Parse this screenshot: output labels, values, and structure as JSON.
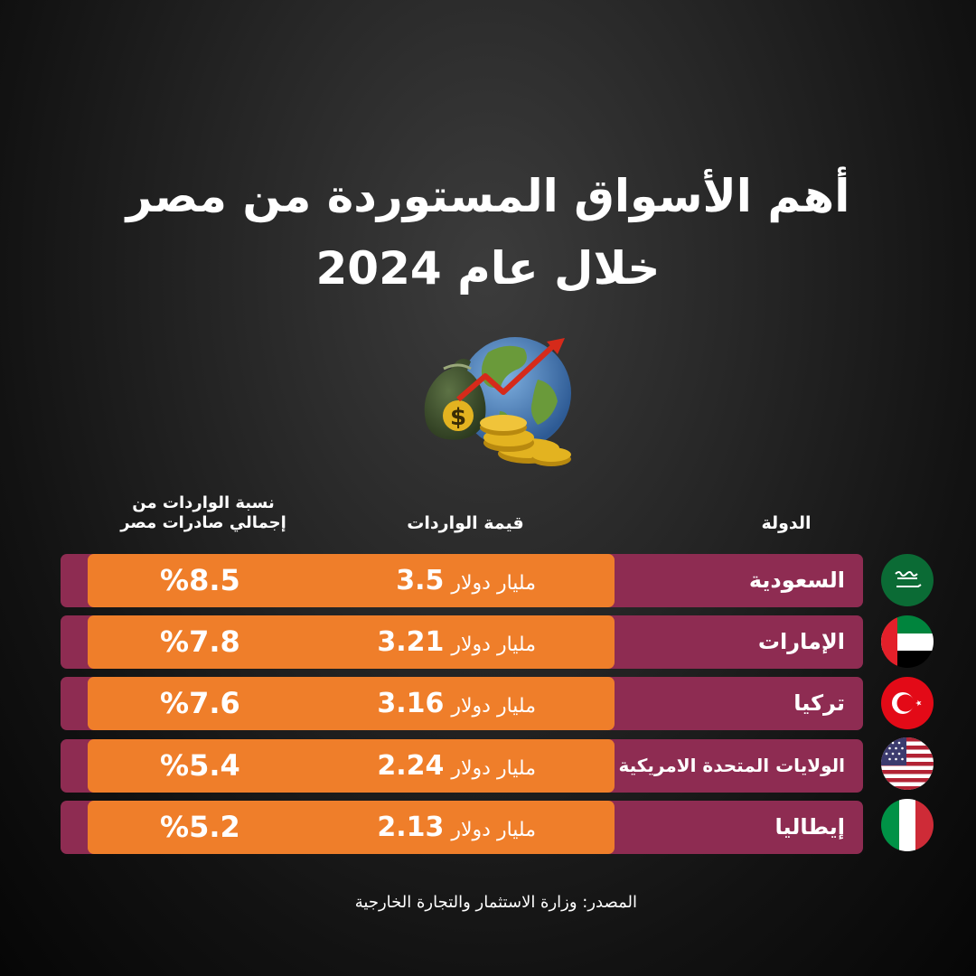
{
  "title": {
    "line1": "أهم الأسواق المستوردة من مصر",
    "line2": "خلال عام 2024"
  },
  "illustration": {
    "icon": "globe-money-growth-icon",
    "colors": {
      "ocean": "#3f6fa8",
      "land": "#6a9a3a",
      "bag": "#3d4e2e",
      "coin": "#e3b320",
      "arrow": "#d62a1a"
    }
  },
  "headers": {
    "country": "الدولة",
    "value": "قيمة الواردات",
    "share_line1": "نسبة الواردات من",
    "share_line2": "إجمالي صادرات مصر"
  },
  "colors": {
    "row_bar": "#8e2c52",
    "row_highlight": "#ef7e2a",
    "text": "#ffffff"
  },
  "rows": [
    {
      "country": "السعودية",
      "flag_icon": "saudi-arabia-flag-icon",
      "value": "3.5",
      "unit": "مليار دولار",
      "share": "%8.5"
    },
    {
      "country": "الإمارات",
      "flag_icon": "uae-flag-icon",
      "value": "3.21",
      "unit": "مليار دولار",
      "share": "%7.8"
    },
    {
      "country": "تركيا",
      "flag_icon": "turkey-flag-icon",
      "value": "3.16",
      "unit": "مليار دولار",
      "share": "%7.6"
    },
    {
      "country": "الولايات المتحدة الامريكية",
      "flag_icon": "usa-flag-icon",
      "value": "2.24",
      "unit": "مليار دولار",
      "share": "%5.4"
    },
    {
      "country": "إيطاليا",
      "flag_icon": "italy-flag-icon",
      "value": "2.13",
      "unit": "مليار دولار",
      "share": "%5.2"
    }
  ],
  "source": "المصدر: وزارة الاستثمار والتجارة الخارجية"
}
